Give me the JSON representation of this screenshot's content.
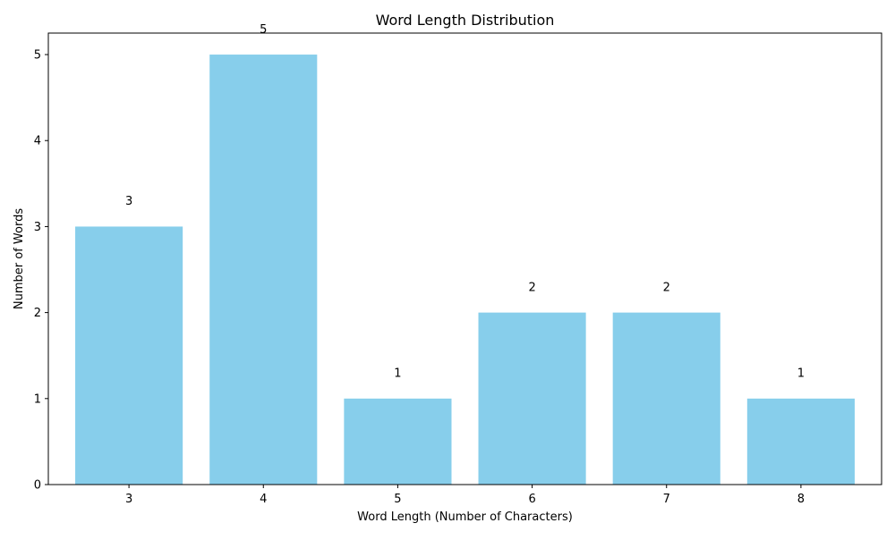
{
  "chart_data": {
    "type": "bar",
    "title": "Word Length Distribution",
    "xlabel": "Word Length (Number of Characters)",
    "ylabel": "Number of Words",
    "categories": [
      "3",
      "4",
      "5",
      "6",
      "7",
      "8"
    ],
    "values": [
      3,
      5,
      1,
      2,
      2,
      1
    ],
    "data_labels": [
      "3",
      "5",
      "1",
      "2",
      "2",
      "1"
    ],
    "ylim": [
      0,
      5.25
    ],
    "yticks": [
      0,
      1,
      2,
      3,
      4,
      5
    ],
    "bar_color": "#87CEEB",
    "grid": false,
    "legend": "none"
  }
}
